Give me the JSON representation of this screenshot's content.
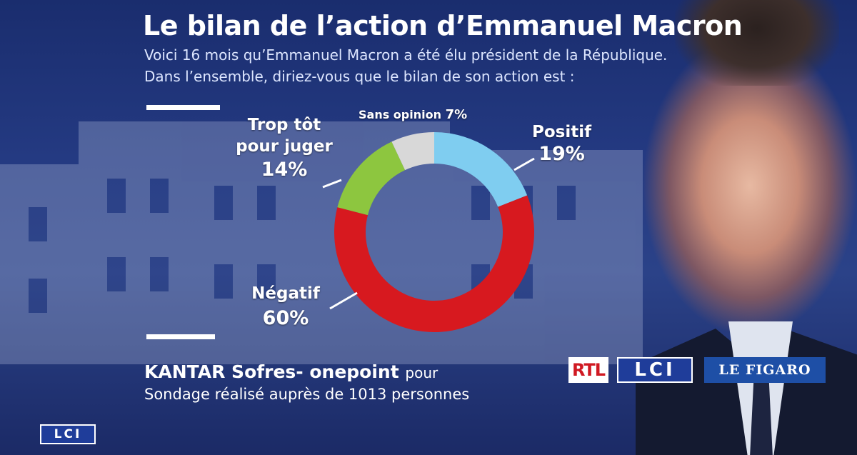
{
  "header": {
    "title": "Le bilan de l’action d’Emmanuel Macron",
    "subtitle_line1": "Voici 16 mois qu’Emmanuel Macron a été élu président de la République.",
    "subtitle_line2": "Dans l’ensemble, diriez-vous que le bilan de son action est :"
  },
  "chart_data": {
    "type": "pie",
    "title": "Le bilan de l’action d’Emmanuel Macron",
    "slices": [
      {
        "label": "Positif",
        "value": 19,
        "display": "19%",
        "color": "#7fcdf0"
      },
      {
        "label": "Négatif",
        "value": 60,
        "display": "60%",
        "color": "#d7191f"
      },
      {
        "label": "Trop tôt pour juger",
        "label_line1": "Trop tôt",
        "label_line2": "pour juger",
        "value": 14,
        "display": "14%",
        "color": "#8dc63f"
      },
      {
        "label": "Sans opinion",
        "value": 7,
        "display": "7%",
        "color": "#d8d8d8"
      }
    ],
    "start_angle_deg": 0,
    "direction": "clockwise",
    "donut": true
  },
  "footer": {
    "source_bold": "KANTAR Sofres- onepoint",
    "source_pour": "pour",
    "sample": "Sondage réalisé auprès de 1013 personnes"
  },
  "logos": {
    "rtl": "RTL",
    "lci": "LCI",
    "figaro": "LE FIGARO",
    "corner_lci": "LCI"
  }
}
